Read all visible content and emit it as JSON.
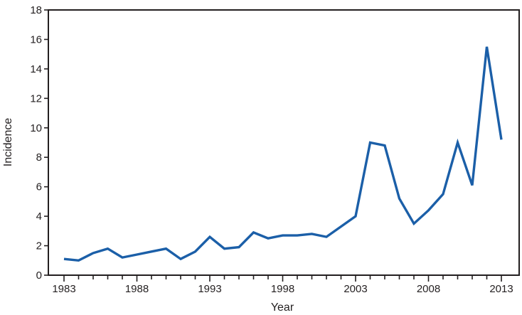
{
  "chart_data": {
    "type": "line",
    "title": "",
    "xlabel": "Year",
    "ylabel": "Incidence",
    "x": [
      1983,
      1984,
      1985,
      1986,
      1987,
      1988,
      1989,
      1990,
      1991,
      1992,
      1993,
      1994,
      1995,
      1996,
      1997,
      1998,
      1999,
      2000,
      2001,
      2002,
      2003,
      2004,
      2005,
      2006,
      2007,
      2008,
      2009,
      2010,
      2011,
      2012,
      2013
    ],
    "series": [
      {
        "name": "Incidence",
        "values": [
          1.1,
          1.0,
          1.5,
          1.8,
          1.2,
          1.4,
          1.6,
          1.8,
          1.1,
          1.6,
          2.6,
          1.8,
          1.9,
          2.9,
          2.5,
          2.7,
          2.7,
          2.8,
          2.6,
          3.3,
          4.0,
          9.0,
          8.8,
          5.2,
          3.5,
          4.4,
          5.5,
          9.0,
          6.1,
          15.5,
          9.2
        ]
      }
    ],
    "ylim": [
      0,
      18
    ],
    "ytick_step": 2,
    "xtick_label_step": 5,
    "x_tick_labels": [
      "1983",
      "1988",
      "1993",
      "1998",
      "2003",
      "2008",
      "2013"
    ],
    "y_tick_labels": [
      "0",
      "2",
      "4",
      "6",
      "8",
      "10",
      "12",
      "14",
      "16",
      "18"
    ],
    "grid": "off",
    "legend": "none",
    "line_color": "#1b5fa8",
    "axis_color": "#231f20",
    "background_color": "#ffffff"
  }
}
